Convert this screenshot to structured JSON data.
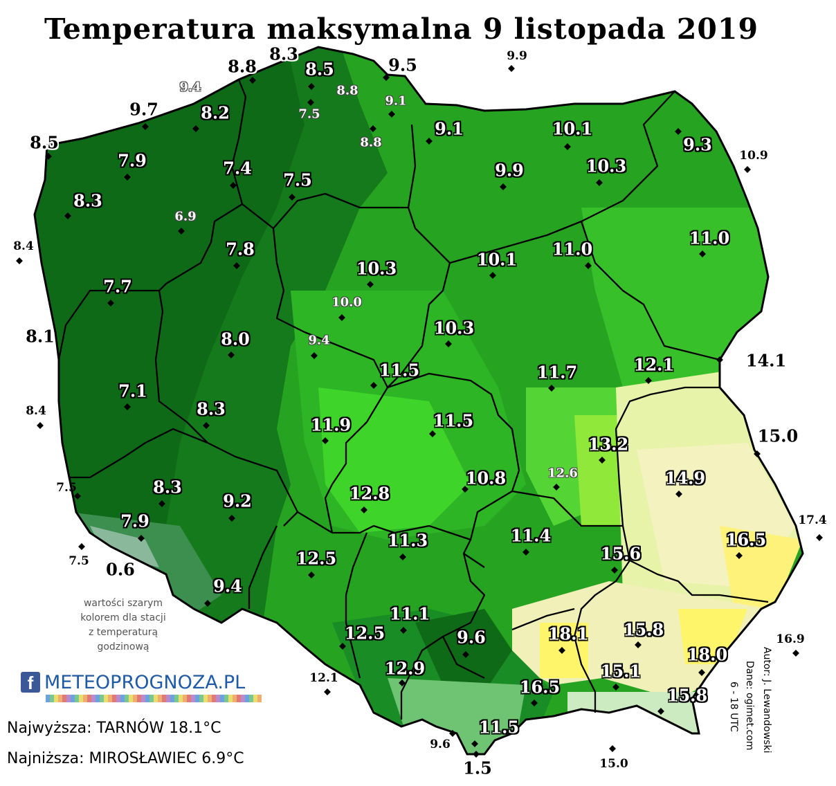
{
  "title": "Temperatura maksymalna 9 listopada 2019",
  "note": [
    "wartości szarym",
    "kolorem dla stacji",
    "z temperaturą",
    "godzinową"
  ],
  "logo": {
    "fb": "f",
    "text": "METEOPROGNOZA.PL"
  },
  "stats": {
    "highest": "Najwyższa: TARNÓW 18.1°C",
    "lowest": "Najniższa: MIROSŁAWIEC 6.9°C"
  },
  "credits": {
    "author": "Autor: J. Lewandowski",
    "data": "Dane: ogimet.com",
    "hours": "6 - 18 UTC"
  },
  "colors": {
    "dark_green": "#0f6a17",
    "mid_green": "#26a321",
    "light_green": "#3fd42a",
    "lime": "#8fe83a",
    "pale_yellow": "#f4f2bf",
    "yellow": "#fff56a"
  },
  "stations_inside": [
    {
      "v": "8.3"
    },
    {
      "v": "8.8"
    },
    {
      "v": "8.5"
    },
    {
      "v": "9.5"
    },
    {
      "v": "9.7"
    },
    {
      "v": "8.2"
    },
    {
      "v": "8.5"
    },
    {
      "v": "7.9"
    },
    {
      "v": "7.4"
    },
    {
      "v": "7.5"
    },
    {
      "v": "8.3"
    },
    {
      "v": "7.8"
    },
    {
      "v": "9.1"
    },
    {
      "v": "10.1"
    },
    {
      "v": "9.3"
    },
    {
      "v": "10.3"
    },
    {
      "v": "9.9"
    },
    {
      "v": "10.3"
    },
    {
      "v": "11.0"
    },
    {
      "v": "10.1"
    },
    {
      "v": "11.0"
    },
    {
      "v": "7.7"
    },
    {
      "v": "8.0"
    },
    {
      "v": "10.3"
    },
    {
      "v": "11.5"
    },
    {
      "v": "11.7"
    },
    {
      "v": "12.1"
    },
    {
      "v": "8.1"
    },
    {
      "v": "7.1"
    },
    {
      "v": "8.3"
    },
    {
      "v": "11.9"
    },
    {
      "v": "11.5"
    },
    {
      "v": "13.2"
    },
    {
      "v": "14.9"
    },
    {
      "v": "8.3"
    },
    {
      "v": "9.2"
    },
    {
      "v": "12.8"
    },
    {
      "v": "10.8"
    },
    {
      "v": "7.9"
    },
    {
      "v": "16.5"
    },
    {
      "v": "0.6"
    },
    {
      "v": "12.5"
    },
    {
      "v": "11.3"
    },
    {
      "v": "11.4"
    },
    {
      "v": "15.6"
    },
    {
      "v": "9.4"
    },
    {
      "v": "11.1"
    },
    {
      "v": "12.5"
    },
    {
      "v": "9.6"
    },
    {
      "v": "18.1"
    },
    {
      "v": "15.8"
    },
    {
      "v": "18.0"
    },
    {
      "v": "12.9"
    },
    {
      "v": "15.1"
    },
    {
      "v": "16.5"
    },
    {
      "v": "15.8"
    },
    {
      "v": "11.5"
    },
    {
      "v": "1.5"
    },
    {
      "v": "14.1"
    },
    {
      "v": "15.0"
    }
  ],
  "stations_gray": [
    {
      "v": "9.4"
    },
    {
      "v": "8.8"
    },
    {
      "v": "7.5"
    },
    {
      "v": "9.1"
    },
    {
      "v": "8.8"
    },
    {
      "v": "6.9"
    },
    {
      "v": "10.0"
    },
    {
      "v": "9.4"
    },
    {
      "v": "12.6"
    }
  ],
  "stations_outside": [
    {
      "v": "9.9"
    },
    {
      "v": "10.9"
    },
    {
      "v": "8.4"
    },
    {
      "v": "8.4"
    },
    {
      "v": "7.5"
    },
    {
      "v": "7.5"
    },
    {
      "v": "17.4"
    },
    {
      "v": "16.9"
    },
    {
      "v": "12.1"
    },
    {
      "v": "9.6"
    },
    {
      "v": "15.0"
    }
  ]
}
